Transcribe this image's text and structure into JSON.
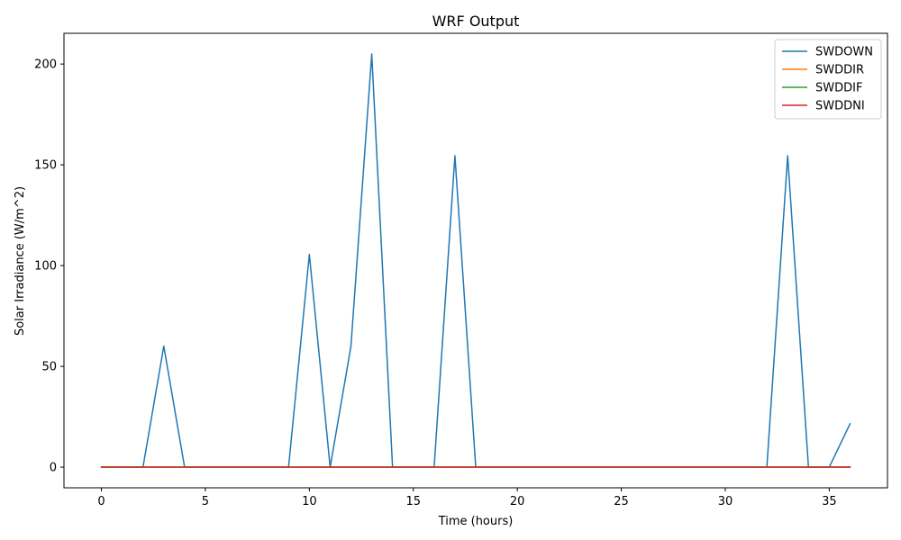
{
  "chart_data": {
    "type": "line",
    "title": "WRF Output",
    "xlabel": "Time (hours)",
    "ylabel": "Solar Irradiance (W/m^2)",
    "xlim": [
      -1.8,
      37.8
    ],
    "ylim": [
      -10.25,
      215.25
    ],
    "xticks": [
      0,
      5,
      10,
      15,
      20,
      25,
      30,
      35
    ],
    "yticks": [
      0,
      50,
      100,
      150,
      200
    ],
    "grid": false,
    "legend_position": "top-right",
    "x": [
      0,
      1,
      2,
      3,
      4,
      5,
      6,
      7,
      8,
      9,
      10,
      11,
      12,
      13,
      14,
      15,
      16,
      17,
      18,
      19,
      20,
      21,
      22,
      23,
      24,
      25,
      26,
      27,
      28,
      29,
      30,
      31,
      32,
      33,
      34,
      35,
      36
    ],
    "series": [
      {
        "name": "SWDOWN",
        "color": "#1f77b4",
        "values": [
          0,
          0,
          0,
          60,
          0,
          0,
          0,
          0,
          0,
          0,
          105.5,
          0,
          60,
          205,
          0,
          0,
          0,
          154.5,
          0,
          0,
          0,
          0,
          0,
          0,
          0,
          0,
          0,
          0,
          0,
          0,
          0,
          0,
          0,
          154.5,
          0,
          0,
          21.5
        ]
      },
      {
        "name": "SWDDIR",
        "color": "#ff7f0e",
        "values": [
          0,
          0,
          0,
          0,
          0,
          0,
          0,
          0,
          0,
          0,
          0,
          0,
          0,
          0,
          0,
          0,
          0,
          0,
          0,
          0,
          0,
          0,
          0,
          0,
          0,
          0,
          0,
          0,
          0,
          0,
          0,
          0,
          0,
          0,
          0,
          0,
          0
        ]
      },
      {
        "name": "SWDDIF",
        "color": "#2ca02c",
        "values": [
          0,
          0,
          0,
          0,
          0,
          0,
          0,
          0,
          0,
          0,
          0,
          0,
          0,
          0,
          0,
          0,
          0,
          0,
          0,
          0,
          0,
          0,
          0,
          0,
          0,
          0,
          0,
          0,
          0,
          0,
          0,
          0,
          0,
          0,
          0,
          0,
          0
        ]
      },
      {
        "name": "SWDDNI",
        "color": "#d62728",
        "values": [
          0,
          0,
          0,
          0,
          0,
          0,
          0,
          0,
          0,
          0,
          0,
          0,
          0,
          0,
          0,
          0,
          0,
          0,
          0,
          0,
          0,
          0,
          0,
          0,
          0,
          0,
          0,
          0,
          0,
          0,
          0,
          0,
          0,
          0,
          0,
          0,
          0
        ]
      }
    ]
  }
}
